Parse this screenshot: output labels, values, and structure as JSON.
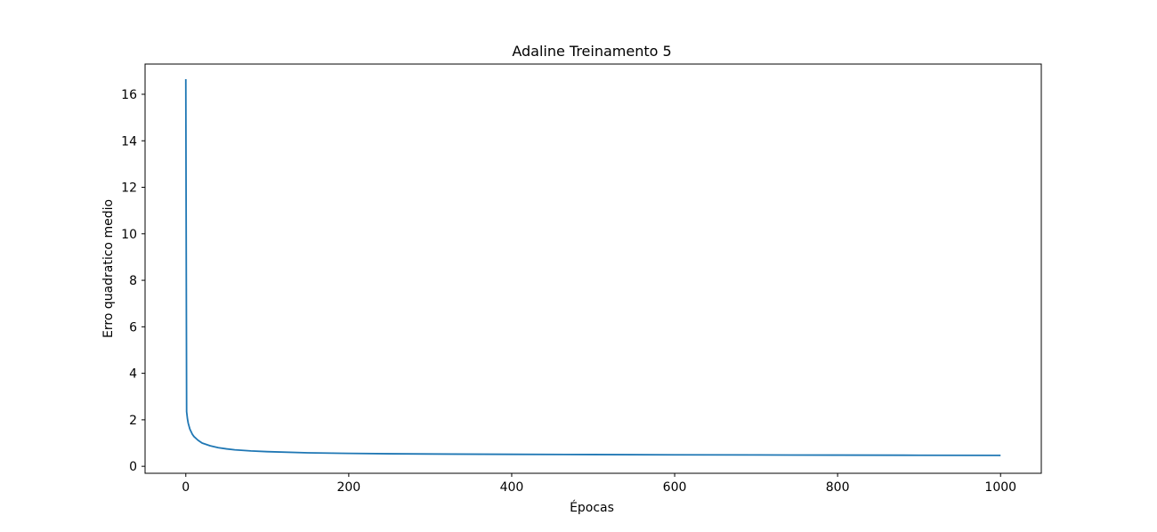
{
  "chart_data": {
    "type": "line",
    "title": "Adaline Treinamento 5",
    "xlabel": "Épocas",
    "ylabel": "Erro quadratico medio",
    "xlim": [
      -50,
      1050
    ],
    "ylim": [
      -0.3,
      17.3
    ],
    "xticks": [
      0,
      200,
      400,
      600,
      800,
      1000
    ],
    "yticks": [
      0,
      2,
      4,
      6,
      8,
      10,
      12,
      14,
      16
    ],
    "grid": false,
    "series": [
      {
        "color": "#1f77b4",
        "x": [
          0,
          1,
          2,
          3,
          5,
          8,
          10,
          15,
          20,
          30,
          40,
          50,
          60,
          80,
          100,
          150,
          200,
          250,
          300,
          400,
          500,
          600,
          700,
          800,
          900,
          1000
        ],
        "y": [
          16.65,
          2.35,
          2.05,
          1.85,
          1.6,
          1.38,
          1.28,
          1.12,
          1.0,
          0.88,
          0.8,
          0.75,
          0.71,
          0.66,
          0.63,
          0.58,
          0.555,
          0.54,
          0.53,
          0.515,
          0.505,
          0.495,
          0.488,
          0.482,
          0.476,
          0.47
        ]
      }
    ]
  }
}
